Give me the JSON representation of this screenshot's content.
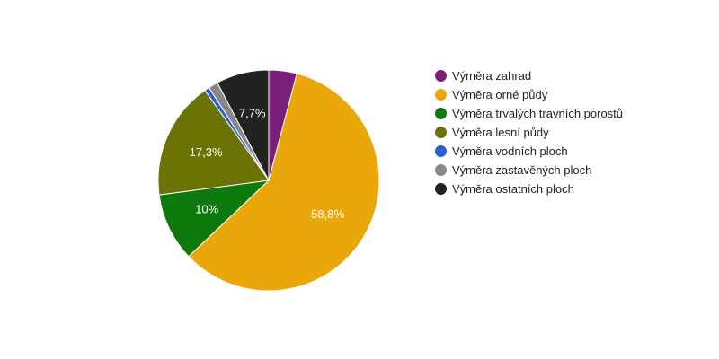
{
  "chart_data": {
    "type": "pie",
    "title": "",
    "series": [
      {
        "name": "Výměra zahrad",
        "value": 4.1,
        "label": "",
        "color": "#7b1e7a"
      },
      {
        "name": "Výměra orné půdy",
        "value": 58.8,
        "label": "58,8%",
        "color": "#eaa70a"
      },
      {
        "name": "Výměra trvalých travních porostů",
        "value": 10.0,
        "label": "10%",
        "color": "#0e7a0d"
      },
      {
        "name": "Výměra lesní půdy",
        "value": 17.3,
        "label": "17,3%",
        "color": "#6c7203"
      },
      {
        "name": "Výměra vodních ploch",
        "value": 0.7,
        "label": "",
        "color": "#2a5fd4"
      },
      {
        "name": "Výměra zastavěných ploch",
        "value": 1.4,
        "label": "",
        "color": "#888888"
      },
      {
        "name": "Výměra ostatních ploch",
        "value": 7.7,
        "label": "7,7%",
        "color": "#222222"
      }
    ],
    "legend_position": "right"
  }
}
